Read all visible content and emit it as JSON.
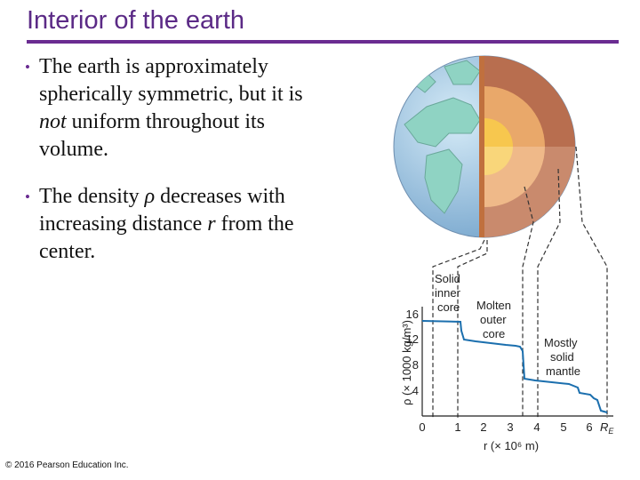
{
  "slide": {
    "title": "Interior of the earth",
    "bullets": [
      {
        "pre": "The earth is approximately spherically symmetric, but it is ",
        "em": "not",
        "post": " uniform throughout its volume."
      },
      {
        "pre": "The density ",
        "em": "ρ",
        "post": " decreases with increasing distance ",
        "em2": "r",
        "post2": " from the center."
      }
    ],
    "copyright": "© 2016 Pearson Education Inc."
  },
  "figure": {
    "labels": {
      "inner_core": [
        "Solid",
        "inner",
        "core"
      ],
      "outer_core": [
        "Molten",
        "outer",
        "core"
      ],
      "mantle": [
        "Mostly",
        "solid",
        "mantle"
      ]
    },
    "y_axis_label": "ρ (× 1000 kg/m³)",
    "x_axis_label": "r (× 10⁶ m)",
    "x_ticks": [
      "0",
      "1",
      "2",
      "3",
      "4",
      "5",
      "6"
    ],
    "x_end_label": "R",
    "x_end_sub": "E",
    "y_ticks": [
      "4",
      "8",
      "12",
      "16"
    ],
    "colors": {
      "ocean": "#9cc4e4",
      "land": "#8fd3c3",
      "inner": "#f7c74e",
      "outer": "#e9a86a",
      "mantle": "#b86e4f",
      "curve": "#1b6fae"
    }
  }
}
